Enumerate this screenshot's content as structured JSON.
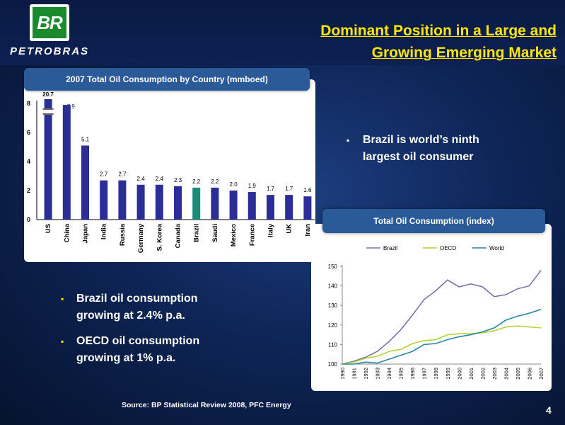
{
  "header": {
    "logo_text": "BR",
    "brand": "PETROBRAS",
    "title_line1": "Dominant Position in a Large and",
    "title_line2": "Growing Emerging Market"
  },
  "bar_panel": {
    "title": "2007 Total Oil Consumption by Country (mmboed)"
  },
  "line_panel": {
    "title": "Total Oil Consumption (index)"
  },
  "bullets": {
    "right": "Brazil is world’s ninth largest oil consumer",
    "left1": "Brazil oil consumption growing at 2.4% p.a.",
    "left2": "OECD oil consumption growing at 1% p.a."
  },
  "footer": {
    "source": "Source: BP Statistical Review 2008, PFC Energy",
    "page": "4"
  },
  "colors": {
    "bar": "#2b2e96",
    "highlight": "#1a8c78",
    "brazil": "#7b73a8",
    "oecd": "#b3d334",
    "world": "#2a86a8",
    "accent": "#ffe600"
  },
  "chart_data": [
    {
      "type": "bar",
      "title": "2007 Total Oil Consumption by Country (mmboed)",
      "categories": [
        "US",
        "China",
        "Japan",
        "India",
        "Russia",
        "Germany",
        "S. Korea",
        "Canada",
        "Brazil",
        "Saudi",
        "Mexico",
        "France",
        "Italy",
        "UK",
        "Iran"
      ],
      "values": [
        20.7,
        7.9,
        5.1,
        2.7,
        2.7,
        2.4,
        2.4,
        2.3,
        2.2,
        2.2,
        2.0,
        1.9,
        1.7,
        1.7,
        1.6
      ],
      "value_labels": [
        "20.7",
        "7.9",
        "5.1",
        "2.7",
        "2.7",
        "2.4",
        "2.4",
        "2.3",
        "2.2",
        "2.2",
        "2.0",
        "1.9",
        "1.7",
        "1.7",
        "1.6"
      ],
      "highlight": "Brazil",
      "axis_break": "US",
      "ylim": [
        0,
        8
      ],
      "yticks": [
        0,
        2,
        4,
        6,
        8
      ],
      "grid": false
    },
    {
      "type": "line",
      "title": "Total Oil Consumption (index)",
      "x": [
        "1990",
        "1991",
        "1992",
        "1993",
        "1994",
        "1995",
        "1996",
        "1997",
        "1998",
        "1999",
        "2000",
        "2001",
        "2002",
        "2003",
        "2004",
        "2005",
        "2006",
        "2007"
      ],
      "series": [
        {
          "name": "Brazil",
          "values": [
            100,
            101.5,
            103.5,
            106.5,
            111.5,
            117.5,
            125,
            133,
            137.5,
            143,
            139.5,
            141,
            139.5,
            134.5,
            135.5,
            138.5,
            140,
            148
          ]
        },
        {
          "name": "OECD",
          "values": [
            100,
            101,
            103,
            104,
            106.5,
            107.5,
            110.5,
            112,
            112.5,
            115,
            115.5,
            115.5,
            116,
            117,
            119,
            119.5,
            119,
            118.5
          ]
        },
        {
          "name": "World",
          "values": [
            100,
            100,
            101,
            100.5,
            102.5,
            104.5,
            106.5,
            110,
            110.5,
            112.5,
            114,
            115,
            116.5,
            118.5,
            122.5,
            124.5,
            126,
            128
          ]
        }
      ],
      "ylim": [
        100,
        150
      ],
      "yticks": [
        100,
        110,
        120,
        130,
        140,
        150
      ],
      "legend": "top",
      "grid": false
    }
  ]
}
